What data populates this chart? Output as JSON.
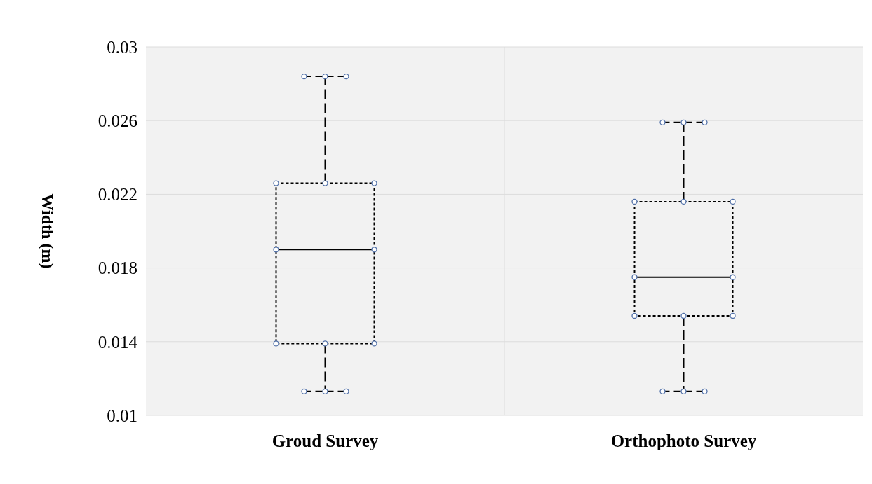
{
  "chart_data": {
    "type": "box",
    "ylabel": "Width (m)",
    "categories": [
      "Groud Survey",
      "Orthophoto Survey"
    ],
    "boxes": [
      {
        "low": 0.0113,
        "q1": 0.0139,
        "median": 0.019,
        "q3": 0.0226,
        "high": 0.0284
      },
      {
        "low": 0.0113,
        "q1": 0.0154,
        "median": 0.0175,
        "q3": 0.0216,
        "high": 0.0259
      }
    ],
    "ylim": [
      0.01,
      0.03
    ],
    "yticks": [
      0.01,
      0.014,
      0.018,
      0.022,
      0.026,
      0.03
    ],
    "grid": true,
    "color": "#000000"
  }
}
